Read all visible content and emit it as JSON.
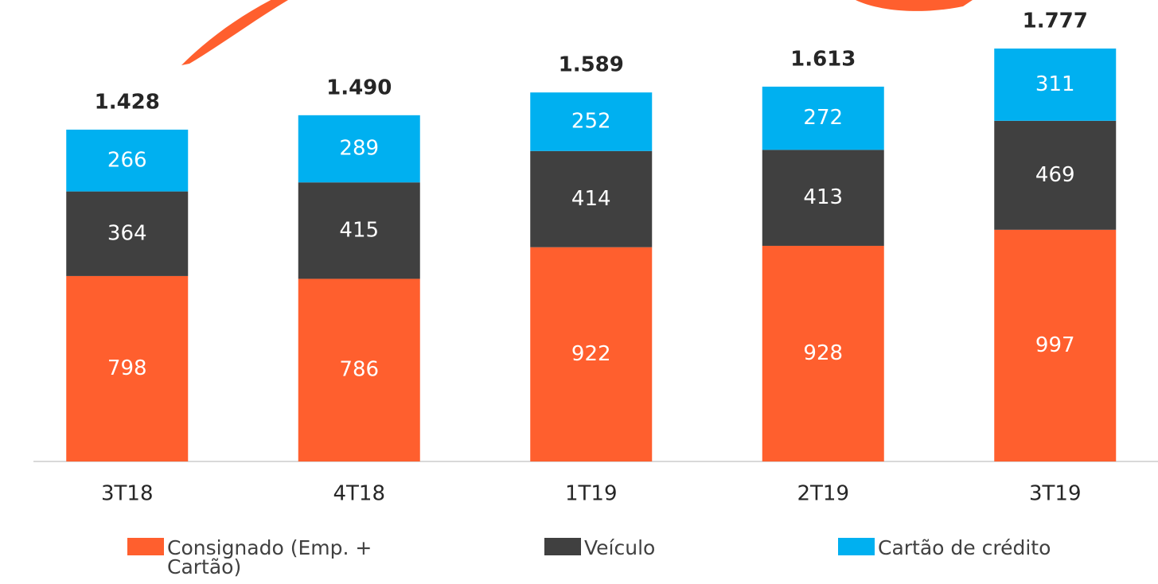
{
  "chart_data": {
    "type": "stacked-bar",
    "categories": [
      "3T18",
      "4T18",
      "1T19",
      "2T19",
      "3T19"
    ],
    "series": [
      {
        "name": "Consignado (Emp. + Cartão)",
        "color": "#FF5F2E",
        "values": [
          798,
          786,
          922,
          928,
          997
        ]
      },
      {
        "name": "Veículo",
        "color": "#404040",
        "values": [
          364,
          415,
          414,
          413,
          469
        ]
      },
      {
        "name": "Cartão de crédito",
        "color": "#00B0F0",
        "values": [
          266,
          289,
          252,
          272,
          311
        ]
      }
    ],
    "totals": {
      "values": [
        1428,
        1490,
        1589,
        1613,
        1777
      ],
      "value_labels": [
        "1.428",
        "1.490",
        "1.589",
        "1.613",
        "1.777"
      ]
    }
  }
}
